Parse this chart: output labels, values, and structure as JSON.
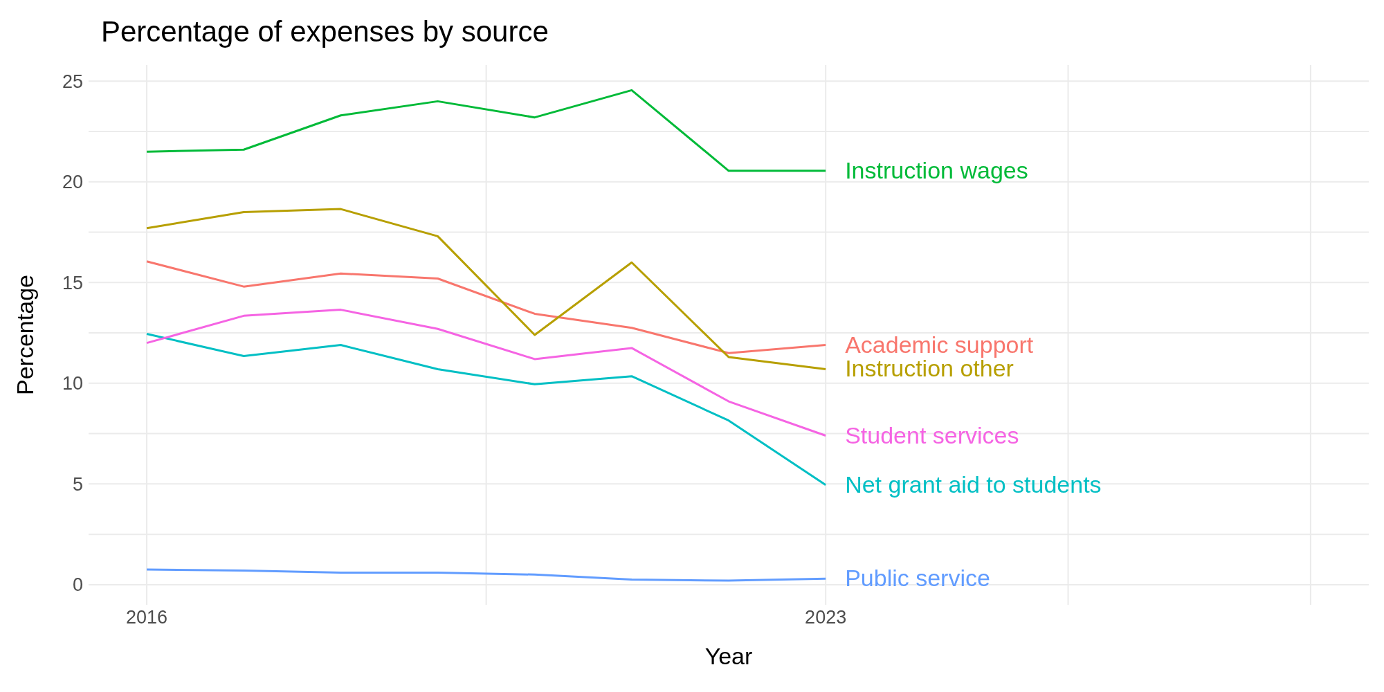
{
  "chart_data": {
    "type": "line",
    "title": "Percentage of expenses by source",
    "xlabel": "Year",
    "ylabel": "Percentage",
    "x": [
      2016,
      2017,
      2018,
      2019,
      2020,
      2021,
      2022,
      2023
    ],
    "xlim": [
      2015.4,
      2028.6
    ],
    "xticks": [
      2016,
      {
        "value": 2019.5,
        "label": null
      },
      2023,
      {
        "value": 2025.5,
        "label": null
      },
      {
        "value": 2028,
        "label": null
      }
    ],
    "ylim": [
      -1,
      25.8
    ],
    "yticks": [
      0,
      {
        "value": 2.5,
        "label": null
      },
      5,
      {
        "value": 7.5,
        "label": null
      },
      10,
      {
        "value": 12.5,
        "label": null
      },
      15,
      {
        "value": 17.5,
        "label": null
      },
      20,
      {
        "value": 22.5,
        "label": null
      },
      25
    ],
    "grid": true,
    "marker": "none",
    "series": [
      {
        "name": "Academic support",
        "color": "#f8766d",
        "values": [
          16.05,
          14.8,
          15.45,
          15.2,
          13.45,
          12.75,
          11.5,
          11.9
        ]
      },
      {
        "name": "Instruction other",
        "color": "#b79f00",
        "values": [
          17.7,
          18.5,
          18.65,
          17.3,
          12.4,
          16.0,
          11.3,
          10.7
        ]
      },
      {
        "name": "Instruction wages",
        "color": "#00ba38",
        "values": [
          21.5,
          21.6,
          23.3,
          24.0,
          23.2,
          24.55,
          20.55,
          20.55
        ]
      },
      {
        "name": "Net grant aid to students",
        "color": "#00bfc4",
        "values": [
          12.45,
          11.35,
          11.9,
          10.7,
          9.95,
          10.35,
          8.15,
          4.95
        ]
      },
      {
        "name": "Public service",
        "color": "#619cff",
        "values": [
          0.75,
          0.7,
          0.6,
          0.6,
          0.5,
          0.25,
          0.2,
          0.3
        ]
      },
      {
        "name": "Student services",
        "color": "#f564e3",
        "values": [
          12.0,
          13.35,
          13.65,
          12.7,
          11.2,
          11.75,
          9.1,
          7.4
        ]
      }
    ]
  }
}
